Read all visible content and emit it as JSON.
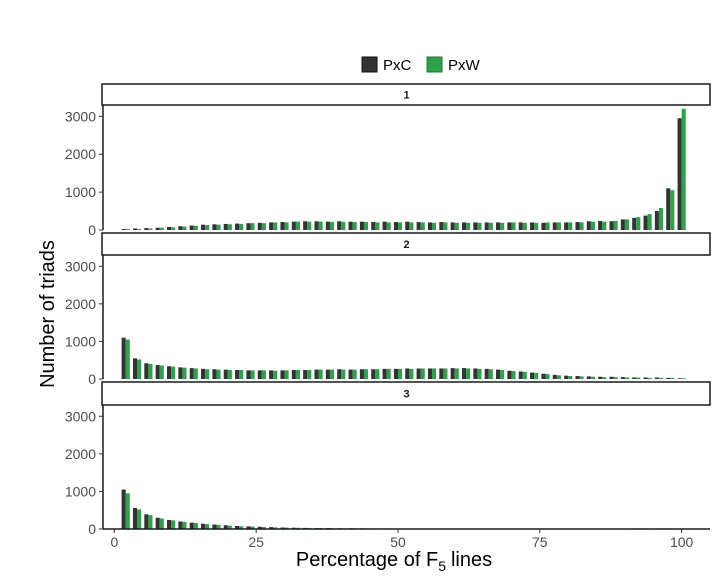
{
  "chart_data": {
    "type": "bar",
    "facet_strips": [
      "1",
      "2",
      "3"
    ],
    "xlabel": "Percentage of",
    "xlabel_subscript_base": "F",
    "xlabel_subscript": "5",
    "xlabel_suffix": "lines",
    "ylabel": "Number of triads",
    "xlim": [
      -2,
      105
    ],
    "ylim": [
      0,
      3300
    ],
    "xticks": [
      0,
      25,
      50,
      75,
      100
    ],
    "xtick_labels": [
      "0",
      "25",
      "50",
      "75",
      "100"
    ],
    "yticks": [
      0,
      1000,
      2000,
      3000
    ],
    "ytick_labels": [
      "0",
      "1000",
      "2000",
      "3000"
    ],
    "legend_position": "top",
    "grid": false,
    "series_colors": {
      "PxC": "#333333",
      "PxW": "#2ca24a"
    },
    "x": [
      2,
      4,
      6,
      8,
      10,
      12,
      14,
      16,
      18,
      20,
      22,
      24,
      26,
      28,
      30,
      32,
      34,
      36,
      38,
      40,
      42,
      44,
      46,
      48,
      50,
      52,
      54,
      56,
      58,
      60,
      62,
      64,
      66,
      68,
      70,
      72,
      74,
      76,
      78,
      80,
      82,
      84,
      86,
      88,
      90,
      92,
      94,
      96,
      98,
      100
    ],
    "panels": [
      {
        "strip": "1",
        "series": [
          {
            "name": "PxC",
            "values": [
              25,
              40,
              50,
              60,
              80,
              100,
              120,
              140,
              150,
              160,
              170,
              180,
              190,
              200,
              210,
              220,
              230,
              230,
              220,
              230,
              220,
              220,
              210,
              220,
              210,
              220,
              210,
              200,
              210,
              200,
              200,
              200,
              200,
              200,
              200,
              200,
              200,
              190,
              200,
              200,
              210,
              230,
              240,
              230,
              280,
              320,
              380,
              500,
              1100,
              2950
            ]
          },
          {
            "name": "PxW",
            "values": [
              25,
              30,
              40,
              60,
              70,
              90,
              110,
              130,
              140,
              150,
              160,
              180,
              180,
              200,
              200,
              220,
              220,
              220,
              210,
              220,
              210,
              210,
              200,
              200,
              200,
              200,
              200,
              190,
              200,
              190,
              190,
              190,
              190,
              190,
              200,
              190,
              190,
              200,
              200,
              200,
              200,
              220,
              220,
              240,
              280,
              340,
              420,
              580,
              1050,
              3200
            ]
          }
        ]
      },
      {
        "strip": "2",
        "series": [
          {
            "name": "PxC",
            "values": [
              1100,
              550,
              420,
              370,
              340,
              310,
              290,
              270,
              260,
              250,
              240,
              230,
              230,
              230,
              230,
              240,
              240,
              250,
              250,
              260,
              250,
              260,
              260,
              270,
              270,
              280,
              280,
              280,
              280,
              290,
              290,
              280,
              270,
              250,
              220,
              200,
              170,
              140,
              110,
              90,
              80,
              70,
              60,
              60,
              50,
              40,
              40,
              40,
              30,
              20
            ]
          },
          {
            "name": "PxW",
            "values": [
              1050,
              520,
              400,
              360,
              330,
              300,
              280,
              260,
              250,
              240,
              240,
              230,
              230,
              220,
              230,
              240,
              240,
              250,
              250,
              250,
              250,
              260,
              260,
              270,
              270,
              270,
              280,
              280,
              280,
              280,
              280,
              270,
              260,
              240,
              210,
              190,
              160,
              130,
              100,
              80,
              70,
              60,
              50,
              50,
              40,
              40,
              30,
              30,
              30,
              20
            ]
          }
        ]
      },
      {
        "strip": "3",
        "series": [
          {
            "name": "PxC",
            "values": [
              1050,
              560,
              390,
              300,
              240,
              200,
              170,
              140,
              120,
              100,
              80,
              70,
              60,
              50,
              40,
              35,
              30,
              25,
              25,
              20,
              20,
              18,
              15,
              15,
              12,
              12,
              10,
              10,
              10,
              10,
              8,
              8,
              8,
              6,
              6,
              5,
              5,
              5,
              4,
              4,
              4,
              3,
              3,
              3,
              3,
              2,
              2,
              2,
              2,
              2
            ]
          },
          {
            "name": "PxW",
            "values": [
              950,
              520,
              370,
              280,
              230,
              190,
              160,
              130,
              110,
              90,
              75,
              65,
              55,
              45,
              38,
              32,
              28,
              24,
              22,
              18,
              18,
              16,
              14,
              14,
              12,
              10,
              10,
              9,
              9,
              8,
              8,
              7,
              7,
              6,
              6,
              5,
              5,
              4,
              4,
              4,
              3,
              3,
              3,
              3,
              2,
              2,
              2,
              2,
              2,
              2
            ]
          }
        ]
      }
    ]
  }
}
